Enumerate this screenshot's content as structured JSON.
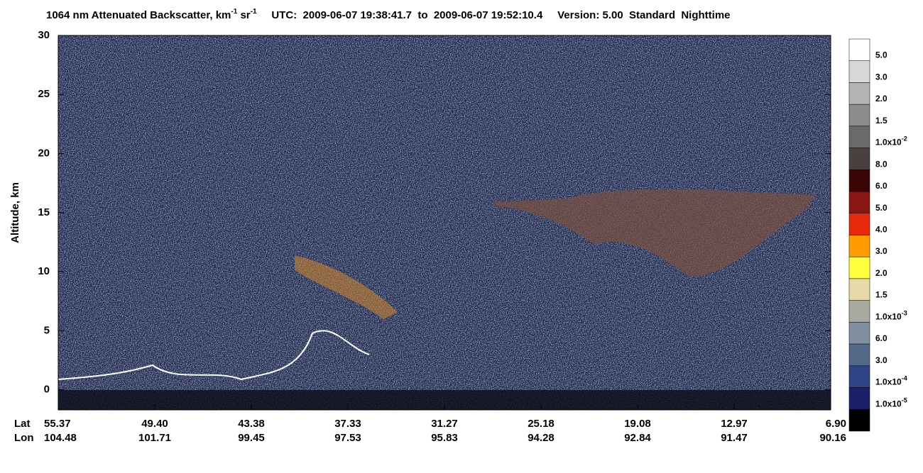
{
  "chart_data": {
    "type": "curtain",
    "title": [
      {
        "text": "1064 nm Attenuated Backscatter, km"
      },
      {
        "text": "-1",
        "sup": true
      },
      {
        "text": " sr"
      },
      {
        "text": "-1",
        "sup": true
      },
      {
        "text": "     UTC:  2009-06-07 19:38:41.7  to  2009-06-07 19:52:10.4     Version: 5.00  Standard  Nighttime"
      }
    ],
    "ylabel": "Altitude, km",
    "ylim": [
      -1.7,
      30
    ],
    "yticks": [
      0,
      5,
      10,
      15,
      20,
      25,
      30
    ],
    "xrow_labels": [
      "Lat",
      "Lon"
    ],
    "xticks": [
      {
        "lat": "55.37",
        "lon": "104.48"
      },
      {
        "lat": "49.40",
        "lon": "101.71"
      },
      {
        "lat": "43.38",
        "lon": "99.45"
      },
      {
        "lat": "37.33",
        "lon": "97.53"
      },
      {
        "lat": "31.27",
        "lon": "95.83"
      },
      {
        "lat": "25.18",
        "lon": "94.28"
      },
      {
        "lat": "19.08",
        "lon": "92.84"
      },
      {
        "lat": "12.97",
        "lon": "91.47"
      },
      {
        "lat": "6.90",
        "lon": "90.16"
      }
    ],
    "colorbar": {
      "colors": [
        "#ffffff",
        "#d8d8d8",
        "#b4b4b4",
        "#8c8c8c",
        "#6a6a6a",
        "#4a4040",
        "#3a0505",
        "#8b1510",
        "#e8280a",
        "#ff9c00",
        "#ffff40",
        "#e8d9a8",
        "#a8aaa0",
        "#8090a0",
        "#546a88",
        "#2f4484",
        "#1d1f6a",
        "#000000"
      ],
      "labels": [
        {
          "text": "5.0"
        },
        {
          "text": "3.0"
        },
        {
          "text": "2.0"
        },
        {
          "text": "1.5"
        },
        {
          "text": "1.0x10",
          "sup": "-2"
        },
        {
          "text": "8.0"
        },
        {
          "text": "6.0"
        },
        {
          "text": "5.0"
        },
        {
          "text": "4.0"
        },
        {
          "text": "3.0"
        },
        {
          "text": "2.0"
        },
        {
          "text": "1.5"
        },
        {
          "text": "1.0x10",
          "sup": "-3"
        },
        {
          "text": "6.0"
        },
        {
          "text": "3.0"
        },
        {
          "text": "1.0x10",
          "sup": "-4"
        },
        {
          "text": "1.0x10",
          "sup": "-5"
        }
      ]
    }
  }
}
